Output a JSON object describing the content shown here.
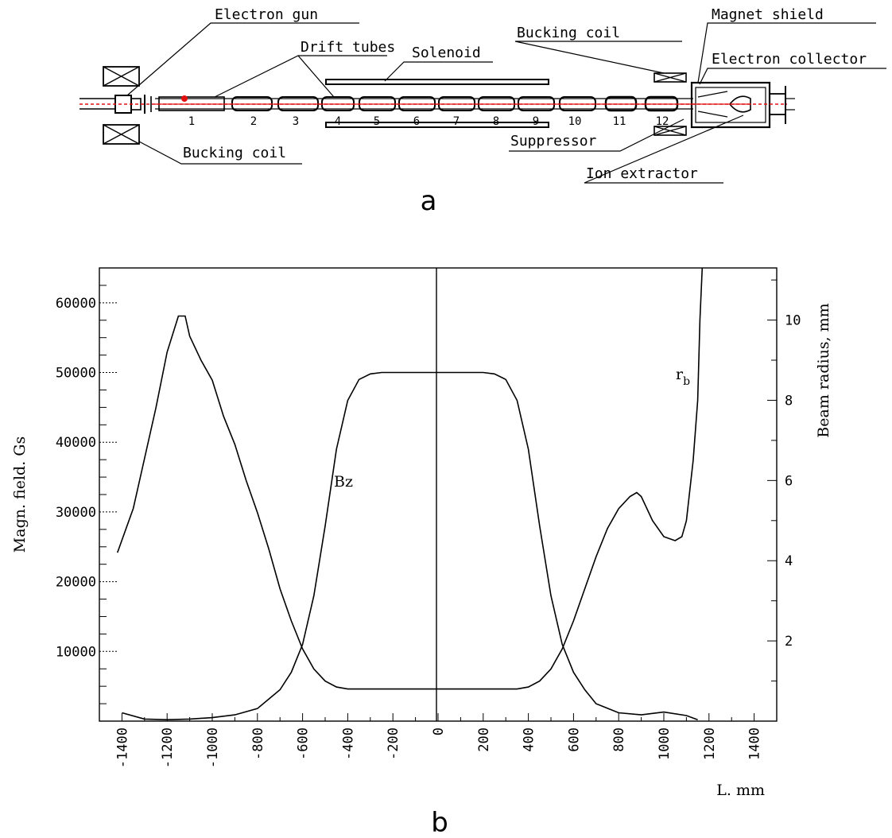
{
  "panel_a": {
    "letter": "a",
    "labels": {
      "electron_gun": "Electron gun",
      "drift_tubes": "Drift tubes",
      "solenoid": "Solenoid",
      "bucking_coil_top": "Bucking coil",
      "magnet_shield": "Magnet shield",
      "electron_collector": "Electron collector",
      "bucking_coil_bottom": "Bucking coil",
      "suppressor": "Suppressor",
      "ion_extractor": "Ion extractor"
    },
    "tube_numbers": [
      "1",
      "2",
      "3",
      "4",
      "5",
      "6",
      "7",
      "8",
      "9",
      "10",
      "11",
      "12"
    ],
    "beam_color": "#e01010"
  },
  "panel_b": {
    "letter": "b",
    "curve_labels": {
      "bz": "Bz",
      "rb_main": "r",
      "rb_sub": "b"
    }
  },
  "chart_data": {
    "type": "line",
    "xlabel": "L. mm",
    "ylabel_left": "Magn. field. Gs",
    "ylabel_right": "Beam radius, mm",
    "xlim": [
      -1500,
      1500
    ],
    "ylim_left": [
      0,
      65000
    ],
    "ylim_right": [
      0,
      11.3
    ],
    "x_ticks": [
      -1400,
      -1200,
      -1000,
      -800,
      -600,
      -400,
      -200,
      0,
      200,
      400,
      600,
      800,
      1000,
      1200,
      1400
    ],
    "y_left_ticks": [
      10000,
      20000,
      30000,
      40000,
      50000,
      60000
    ],
    "y_right_ticks": [
      2,
      4,
      6,
      8,
      10
    ],
    "series": [
      {
        "name": "Bz",
        "axis": "left",
        "x": [
          -1400,
          -1300,
          -1200,
          -1100,
          -1000,
          -900,
          -800,
          -700,
          -650,
          -600,
          -550,
          -500,
          -450,
          -400,
          -350,
          -300,
          -250,
          -200,
          0,
          200,
          250,
          300,
          350,
          400,
          450,
          500,
          550,
          600,
          650,
          700,
          800,
          900,
          1000,
          1100,
          1150
        ],
        "y": [
          1200,
          300,
          200,
          300,
          500,
          900,
          1800,
          4500,
          7000,
          11000,
          18000,
          28000,
          39000,
          46000,
          49000,
          49800,
          50000,
          50000,
          50000,
          50000,
          49800,
          49000,
          46000,
          39000,
          28000,
          18000,
          11000,
          7000,
          4500,
          2500,
          1200,
          900,
          1300,
          800,
          200
        ]
      },
      {
        "name": "r",
        "axis": "right",
        "x": [
          -1420,
          -1350,
          -1250,
          -1200,
          -1150,
          -1120,
          -1100,
          -1050,
          -1000,
          -950,
          -900,
          -850,
          -800,
          -750,
          -700,
          -650,
          -600,
          -550,
          -500,
          -450,
          -400,
          -350,
          -300,
          -200,
          0,
          200,
          300,
          350,
          400,
          450,
          500,
          550,
          600,
          650,
          700,
          750,
          800,
          850,
          880,
          900,
          950,
          1000,
          1050,
          1080,
          1100,
          1130,
          1150,
          1160,
          1170
        ],
        "y": [
          4.2,
          5.3,
          7.8,
          9.2,
          10.1,
          10.1,
          9.6,
          9.0,
          8.5,
          7.6,
          6.9,
          6.0,
          5.2,
          4.3,
          3.3,
          2.5,
          1.8,
          1.3,
          1.0,
          0.85,
          0.8,
          0.8,
          0.8,
          0.8,
          0.8,
          0.8,
          0.8,
          0.8,
          0.85,
          1.0,
          1.3,
          1.8,
          2.5,
          3.3,
          4.1,
          4.8,
          5.3,
          5.6,
          5.7,
          5.6,
          5.0,
          4.6,
          4.5,
          4.6,
          5.0,
          6.5,
          8.0,
          10.0,
          11.3
        ]
      }
    ]
  }
}
